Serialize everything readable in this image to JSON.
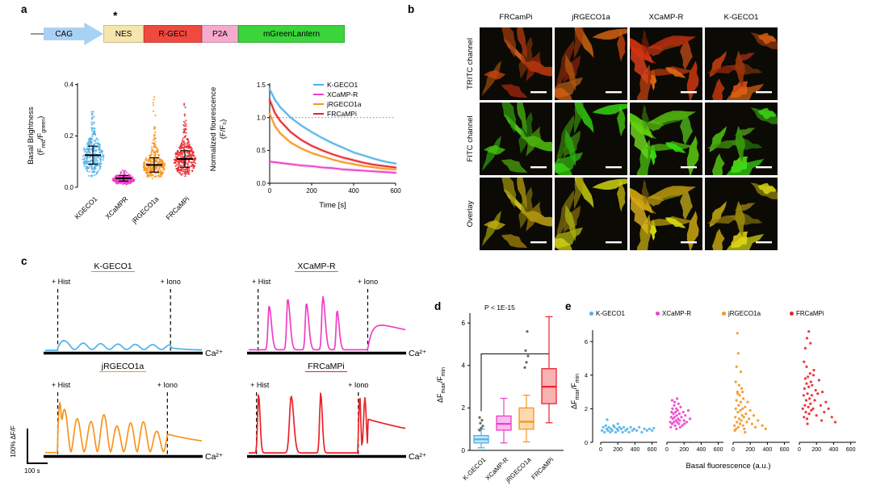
{
  "panels": {
    "a": "a",
    "b": "b",
    "c": "c",
    "d": "d",
    "e": "e"
  },
  "colors": {
    "kgeco1": "#4fb2e8",
    "xcampr": "#ee3fc8",
    "jrgeco1a": "#f7941d",
    "frcampi": "#ea2328"
  },
  "construct": {
    "asterisk": "*",
    "elements": [
      {
        "label": "CAG",
        "color": "#a9d1f2"
      },
      {
        "label": "NES",
        "color": "#f6e6ae"
      },
      {
        "label": "R-GECI",
        "color": "#f04a3e"
      },
      {
        "label": "P2A",
        "color": "#f6abcd"
      },
      {
        "label": "mGreenLantern",
        "color": "#3bd43b"
      }
    ]
  },
  "text": {
    "basal_line1": "Basal Brightness",
    "basal_f1": "(F",
    "basal_sub1": "red",
    "basal_f2": "/F",
    "basal_sub2": "green",
    "basal_f3": ")",
    "norm_line1": "Normalized flourescence",
    "norm_line2": "(F/F₀)",
    "dff_a": "ΔF",
    "dff_sub1": "max",
    "dff_b": "/F",
    "dff_sub2": "min",
    "ca": "Ca²⁺",
    "hist": "+ Hist",
    "iono": "+ Iono",
    "scalebar_y": "100% ΔF/F",
    "scalebar_x": "100 s",
    "pval": "P < 1E-15",
    "basal_fluor_label": "Basal fluorescence (a.u.)"
  },
  "panel_b": {
    "columns": [
      "FRCamPi",
      "jRGECO1a",
      "XCaMP-R",
      "K-GECO1"
    ],
    "rows": [
      "TRITC channel",
      "FITC channel",
      "Overlay"
    ],
    "hues": [
      18,
      102,
      54
    ],
    "bg": "#0c0a04"
  },
  "chart_data": [
    {
      "id": "basal_brightness",
      "type": "scatter",
      "ylabel": "Basal Brightness (Fred/Fgreen)",
      "ylim": [
        0,
        0.45
      ],
      "yticks": [
        "0.0",
        "0.2",
        "0.4"
      ],
      "series": [
        {
          "name": "KGECO1",
          "color": "#4fb2e8",
          "n": 300,
          "mode": 0.12,
          "sd": 0.035,
          "max": 0.3,
          "tail": true
        },
        {
          "name": "XCaMPR",
          "color": "#ee3fc8",
          "n": 300,
          "mode": 0.03,
          "sd": 0.011,
          "max": 0.085,
          "tail": false
        },
        {
          "name": "jRGECO1a",
          "color": "#f7941d",
          "n": 300,
          "mode": 0.082,
          "sd": 0.028,
          "max": 0.36,
          "tail": true
        },
        {
          "name": "FRCaMPi",
          "color": "#ea2328",
          "n": 300,
          "mode": 0.105,
          "sd": 0.032,
          "max": 0.33,
          "tail": true
        }
      ]
    },
    {
      "id": "photobleaching",
      "type": "line",
      "xlabel": "Time [s]",
      "ylabel": "Normalized flourescence (F/F0)",
      "xlim": [
        0,
        600
      ],
      "ylim": [
        0,
        1.5
      ],
      "xticks": [
        "0",
        "200",
        "400",
        "600"
      ],
      "yticks": [
        "0.0",
        "0.5",
        "1.0",
        "1.5"
      ],
      "reference_y": 1.0,
      "x": [
        0,
        25,
        50,
        100,
        150,
        200,
        250,
        300,
        350,
        400,
        450,
        500,
        550,
        600
      ],
      "series": [
        {
          "name": "K-GECO1",
          "color": "#4fb2e8",
          "values": [
            1.43,
            1.27,
            1.16,
            1.0,
            0.88,
            0.78,
            0.69,
            0.61,
            0.54,
            0.47,
            0.42,
            0.37,
            0.33,
            0.3
          ]
        },
        {
          "name": "XCaMP-R",
          "color": "#ee3fc8",
          "values": [
            0.33,
            0.32,
            0.31,
            0.29,
            0.27,
            0.26,
            0.24,
            0.23,
            0.21,
            0.2,
            0.19,
            0.18,
            0.17,
            0.16
          ]
        },
        {
          "name": "jRGECO1a",
          "color": "#f7941d",
          "values": [
            1.06,
            0.87,
            0.76,
            0.62,
            0.53,
            0.46,
            0.41,
            0.36,
            0.32,
            0.29,
            0.26,
            0.24,
            0.22,
            0.21
          ]
        },
        {
          "name": "FRCaMPi",
          "color": "#ea2328",
          "values": [
            1.27,
            1.07,
            0.95,
            0.78,
            0.66,
            0.57,
            0.5,
            0.44,
            0.39,
            0.35,
            0.31,
            0.28,
            0.26,
            0.24
          ]
        }
      ]
    },
    {
      "id": "hela_traces",
      "type": "line",
      "scalebar": {
        "y": "100% ΔF/F",
        "x": "100 s"
      },
      "traces": [
        {
          "name": "K-GECO1",
          "color": "#4fb2e8",
          "pattern": "small",
          "hist": 0.08,
          "iono": 0.8,
          "amp": 52
        },
        {
          "name": "XCaMP-R",
          "color": "#ee3fc8",
          "pattern": "spikes",
          "hist": 0.06,
          "iono": 0.76,
          "amp": 68,
          "spikes": [
            [
              0.1,
              0.8,
              0.016
            ],
            [
              0.27,
              0.93,
              0.016
            ],
            [
              0.44,
              0.85,
              0.016
            ],
            [
              0.59,
              0.97,
              0.016
            ],
            [
              0.72,
              0.72,
              0.014
            ]
          ]
        },
        {
          "name": "jRGECO1a",
          "color": "#f7941d",
          "pattern": "osc",
          "hist": 0.08,
          "iono": 0.78,
          "amp": 76,
          "cycles": 8.3
        },
        {
          "name": "FRCaMPi",
          "color": "#ea2328",
          "pattern": "sharp",
          "hist": 0.05,
          "iono": 0.7,
          "amp": 76,
          "spikes": [
            [
              0.02,
              0.96,
              0.013
            ],
            [
              0.34,
              0.93,
              0.022
            ],
            [
              0.63,
              0.98,
              0.014
            ]
          ]
        }
      ]
    },
    {
      "id": "dff_boxplot",
      "type": "box",
      "ylim": [
        0,
        7
      ],
      "yticks": [
        "0",
        "2",
        "4",
        "6"
      ],
      "annotation": "P < 1E-15",
      "boxes": [
        {
          "name": "K-GECO1",
          "color": "#4fb2e8",
          "lo": 0.12,
          "q1": 0.35,
          "med": 0.52,
          "q3": 0.7,
          "hi": 1.0,
          "outliers": [
            0.95,
            1.05,
            1.15,
            1.28,
            1.42,
            1.55
          ]
        },
        {
          "name": "XCaMP-R",
          "color": "#ee3fc8",
          "lo": 0.35,
          "q1": 0.95,
          "med": 1.25,
          "q3": 1.62,
          "hi": 2.45,
          "outliers": []
        },
        {
          "name": "jRGECO1a",
          "color": "#f7941d",
          "lo": 0.4,
          "q1": 1.0,
          "med": 1.35,
          "q3": 2.0,
          "hi": 2.6,
          "outliers": [
            3.9,
            4.15,
            4.45,
            4.7,
            5.6
          ]
        },
        {
          "name": "FRCaMPi",
          "color": "#ea2328",
          "lo": 1.3,
          "q1": 2.2,
          "med": 3.0,
          "q3": 3.85,
          "hi": 6.3,
          "outliers": []
        }
      ]
    },
    {
      "id": "dff_vs_basal",
      "type": "scatter",
      "xlabel": "Basal fluorescence (a.u.)",
      "xlim": [
        0,
        660
      ],
      "ylim": [
        0,
        7
      ],
      "xticks": [
        "0",
        "200",
        "400",
        "600"
      ],
      "yticks": [
        "0",
        "2",
        "4",
        "6"
      ],
      "groups": [
        {
          "name": "K-GECO1",
          "color": "#4fb2e8",
          "points": [
            [
              15,
              0.7
            ],
            [
              30,
              0.9
            ],
            [
              45,
              0.6
            ],
            [
              60,
              1.0
            ],
            [
              70,
              0.8
            ],
            [
              85,
              0.7
            ],
            [
              95,
              0.9
            ],
            [
              110,
              0.6
            ],
            [
              120,
              0.8
            ],
            [
              135,
              0.7
            ],
            [
              150,
              1.0
            ],
            [
              160,
              0.9
            ],
            [
              175,
              0.6
            ],
            [
              190,
              0.8
            ],
            [
              205,
              0.7
            ],
            [
              220,
              0.9
            ],
            [
              240,
              0.8
            ],
            [
              255,
              0.6
            ],
            [
              270,
              0.9
            ],
            [
              290,
              0.7
            ],
            [
              310,
              0.8
            ],
            [
              330,
              0.6
            ],
            [
              350,
              0.9
            ],
            [
              370,
              0.7
            ],
            [
              390,
              0.8
            ],
            [
              420,
              0.7
            ],
            [
              450,
              0.9
            ],
            [
              480,
              0.6
            ],
            [
              510,
              0.8
            ],
            [
              540,
              0.7
            ],
            [
              570,
              0.8
            ],
            [
              600,
              0.7
            ],
            [
              620,
              0.85
            ],
            [
              75,
              1.35
            ],
            [
              200,
              1.1
            ]
          ]
        },
        {
          "name": "XCaMP-R",
          "color": "#ee3fc8",
          "points": [
            [
              40,
              1.2
            ],
            [
              50,
              1.5
            ],
            [
              55,
              1.8
            ],
            [
              60,
              1.1
            ],
            [
              65,
              2.0
            ],
            [
              70,
              1.4
            ],
            [
              75,
              1.7
            ],
            [
              80,
              1.2
            ],
            [
              85,
              2.2
            ],
            [
              90,
              1.5
            ],
            [
              95,
              1.0
            ],
            [
              100,
              1.8
            ],
            [
              105,
              1.3
            ],
            [
              110,
              2.0
            ],
            [
              115,
              1.6
            ],
            [
              120,
              1.2
            ],
            [
              125,
              1.9
            ],
            [
              130,
              1.4
            ],
            [
              135,
              2.3
            ],
            [
              140,
              1.1
            ],
            [
              145,
              1.7
            ],
            [
              150,
              1.3
            ],
            [
              160,
              2.1
            ],
            [
              170,
              1.5
            ],
            [
              180,
              1.0
            ],
            [
              190,
              1.8
            ],
            [
              200,
              1.3
            ],
            [
              215,
              1.6
            ],
            [
              230,
              1.2
            ],
            [
              250,
              1.9
            ],
            [
              270,
              1.4
            ],
            [
              60,
              2.5
            ],
            [
              90,
              2.4
            ],
            [
              120,
              2.6
            ],
            [
              45,
              0.9
            ],
            [
              155,
              0.9
            ],
            [
              205,
              1.1
            ],
            [
              110,
              0.8
            ]
          ]
        },
        {
          "name": "jRGECO1a",
          "color": "#f7941d",
          "points": [
            [
              15,
              1.0
            ],
            [
              25,
              1.5
            ],
            [
              30,
              2.0
            ],
            [
              35,
              0.8
            ],
            [
              40,
              2.5
            ],
            [
              45,
              1.2
            ],
            [
              50,
              3.0
            ],
            [
              55,
              1.8
            ],
            [
              60,
              0.9
            ],
            [
              65,
              2.2
            ],
            [
              70,
              1.4
            ],
            [
              75,
              2.8
            ],
            [
              80,
              1.1
            ],
            [
              85,
              1.9
            ],
            [
              90,
              2.4
            ],
            [
              95,
              1.3
            ],
            [
              100,
              3.2
            ],
            [
              105,
              1.6
            ],
            [
              110,
              2.0
            ],
            [
              115,
              1.0
            ],
            [
              120,
              2.6
            ],
            [
              125,
              1.5
            ],
            [
              130,
              0.8
            ],
            [
              140,
              2.1
            ],
            [
              150,
              1.7
            ],
            [
              160,
              1.2
            ],
            [
              170,
              2.4
            ],
            [
              185,
              1.4
            ],
            [
              200,
              1.9
            ],
            [
              220,
              1.1
            ],
            [
              240,
              1.6
            ],
            [
              260,
              0.9
            ],
            [
              290,
              1.3
            ],
            [
              40,
              4.5
            ],
            [
              60,
              5.3
            ],
            [
              50,
              6.5
            ],
            [
              90,
              4.2
            ],
            [
              340,
              1.0
            ],
            [
              380,
              0.8
            ],
            [
              30,
              3.6
            ],
            [
              70,
              3.4
            ],
            [
              110,
              3.0
            ],
            [
              140,
              0.6
            ],
            [
              20,
              0.7
            ],
            [
              55,
              2.9
            ]
          ]
        },
        {
          "name": "FRCaMPi",
          "color": "#ea2328",
          "points": [
            [
              40,
              2.0
            ],
            [
              50,
              2.8
            ],
            [
              55,
              1.5
            ],
            [
              60,
              3.2
            ],
            [
              65,
              2.2
            ],
            [
              70,
              3.8
            ],
            [
              75,
              1.8
            ],
            [
              80,
              2.5
            ],
            [
              85,
              3.5
            ],
            [
              90,
              1.4
            ],
            [
              95,
              2.9
            ],
            [
              100,
              3.9
            ],
            [
              105,
              2.1
            ],
            [
              110,
              3.3
            ],
            [
              115,
              1.7
            ],
            [
              120,
              2.6
            ],
            [
              125,
              4.1
            ],
            [
              130,
              2.3
            ],
            [
              135,
              3.6
            ],
            [
              140,
              1.9
            ],
            [
              145,
              2.8
            ],
            [
              150,
              3.4
            ],
            [
              160,
              2.0
            ],
            [
              170,
              4.3
            ],
            [
              180,
              2.5
            ],
            [
              190,
              3.1
            ],
            [
              200,
              1.6
            ],
            [
              215,
              2.9
            ],
            [
              230,
              3.7
            ],
            [
              250,
              2.2
            ],
            [
              270,
              3.0
            ],
            [
              290,
              1.8
            ],
            [
              310,
              2.4
            ],
            [
              340,
              2.0
            ],
            [
              380,
              1.5
            ],
            [
              420,
              1.2
            ],
            [
              70,
              5.6
            ],
            [
              90,
              6.2
            ],
            [
              110,
              6.6
            ],
            [
              130,
              5.9
            ],
            [
              55,
              4.8
            ],
            [
              85,
              4.5
            ],
            [
              165,
              4.0
            ],
            [
              95,
              1.1
            ],
            [
              260,
              1.3
            ]
          ]
        }
      ]
    }
  ]
}
